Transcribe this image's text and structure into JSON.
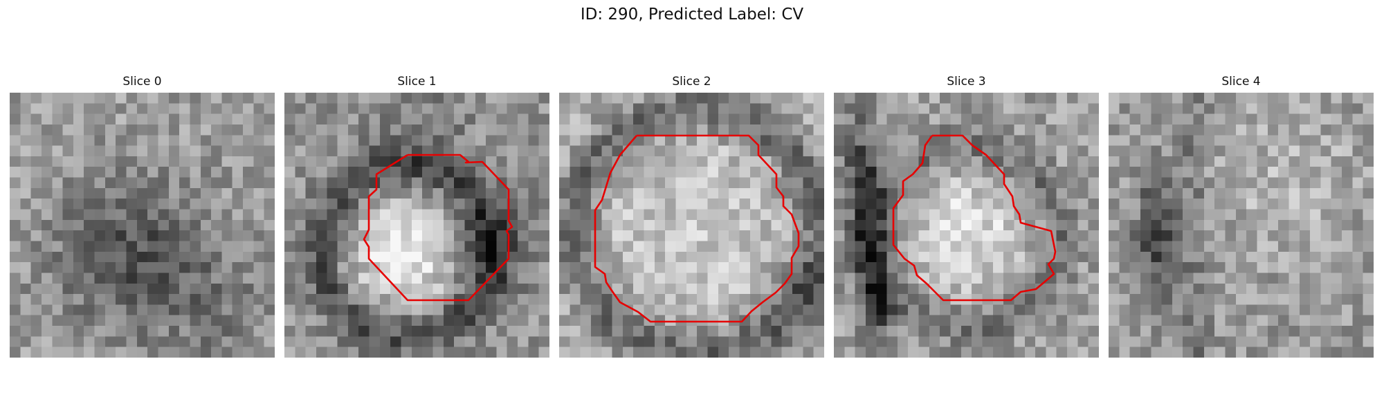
{
  "figure": {
    "title": "ID: 290, Predicted Label: CV"
  },
  "panels": [
    {
      "title": "Slice 0"
    },
    {
      "title": "Slice 1"
    },
    {
      "title": "Slice 2"
    },
    {
      "title": "Slice 3"
    },
    {
      "title": "Slice 4"
    }
  ],
  "colors": {
    "contour": "#e60000",
    "colormap": "gray"
  }
}
